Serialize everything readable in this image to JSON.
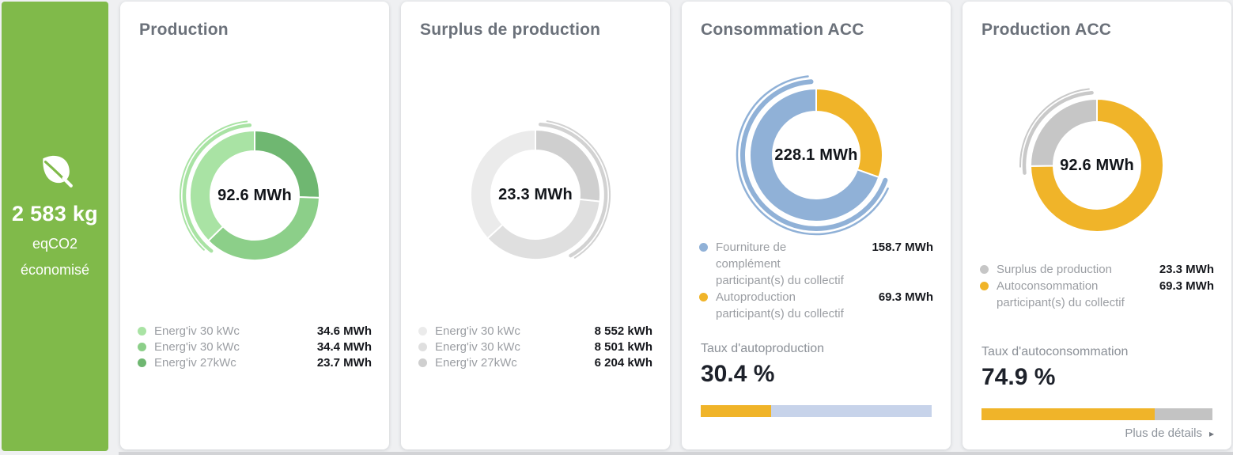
{
  "sidebar": {
    "icon": "leaf-icon",
    "color": "#80ba4a",
    "value": "2 583 kg",
    "line2": "eqCO2",
    "line3": "économisé"
  },
  "cards": [
    {
      "title": "Production"
    },
    {
      "title": "Surplus de production"
    },
    {
      "title": "Consommation ACC",
      "rate": {
        "label": "Taux d'autoproduction",
        "display": "30.4 %",
        "value": 30.4,
        "bar_fill": "#f0b429",
        "bar_track": "#c7d3ea"
      }
    },
    {
      "title": "Production ACC",
      "rate": {
        "label": "Taux d'autoconsommation",
        "display": "74.9 %",
        "value": 74.9,
        "bar_fill": "#f0b429",
        "bar_track": "#c3c3c3"
      },
      "details_link": {
        "label": "Plus de détails",
        "icon": "▸"
      }
    }
  ],
  "chart_data": [
    {
      "type": "pie",
      "subtype": "donut",
      "title": "Production",
      "center_label": "92.6 MWh",
      "unit": "MWh",
      "direction": "counterclockwise",
      "segments": [
        {
          "label": "Energ'iv 30 kWc",
          "value": 34.6,
          "display": "34.6 MWh",
          "color": "#a9e3a4"
        },
        {
          "label": "Energ'iv 30 kWc",
          "value": 34.4,
          "display": "34.4 MWh",
          "color": "#8ccf89"
        },
        {
          "label": "Energ'iv 27kWc",
          "value": 23.7,
          "display": "23.7 MWh",
          "color": "#6fb771"
        }
      ],
      "outer_arc": {
        "start_deg": 218,
        "end_deg": 356,
        "color": "#a9e3a4"
      }
    },
    {
      "type": "pie",
      "subtype": "donut",
      "title": "Surplus de production",
      "center_label": "23.3 MWh",
      "unit": "kWh",
      "direction": "counterclockwise",
      "segments": [
        {
          "label": "Energ'iv 30 kWc",
          "value": 8552,
          "display": "8 552 kWh",
          "color": "#ebebeb"
        },
        {
          "label": "Energ'iv 30 kWc",
          "value": 8501,
          "display": "8 501 kWh",
          "color": "#dfdfdf"
        },
        {
          "label": "Energ'iv 27kWc",
          "value": 6204,
          "display": "6 204 kWh",
          "color": "#cfcfcf"
        }
      ],
      "outer_arc": {
        "start_deg": 4,
        "end_deg": 150,
        "color": "#d2d2d2"
      }
    },
    {
      "type": "pie",
      "subtype": "donut",
      "title": "Consommation ACC",
      "center_label": "228.1 MWh",
      "unit": "MWh",
      "direction": "counterclockwise",
      "segments": [
        {
          "label": "Fourniture de\ncomplément\nparticipant(s) du collectif",
          "value": 158.7,
          "display": "158.7 MWh",
          "color": "#90b1d7"
        },
        {
          "label": "Autoproduction\nparticipant(s) du collectif",
          "value": 69.3,
          "display": "69.3 MWh",
          "color": "#f0b429"
        }
      ],
      "outer_arc": {
        "start_deg": 110,
        "end_deg": 356,
        "color": "#90b1d7"
      }
    },
    {
      "type": "pie",
      "subtype": "donut",
      "title": "Production ACC",
      "center_label": "92.6 MWh",
      "unit": "MWh",
      "direction": "counterclockwise",
      "segments": [
        {
          "label": "Surplus de production",
          "value": 23.3,
          "display": "23.3 MWh",
          "color": "#c6c6c6"
        },
        {
          "label": "Autoconsommation\nparticipant(s) du collectif",
          "value": 69.3,
          "display": "69.3 MWh",
          "color": "#f0b429"
        }
      ],
      "outer_arc": {
        "start_deg": 264,
        "end_deg": 356,
        "color": "#c9c9c9"
      }
    }
  ]
}
